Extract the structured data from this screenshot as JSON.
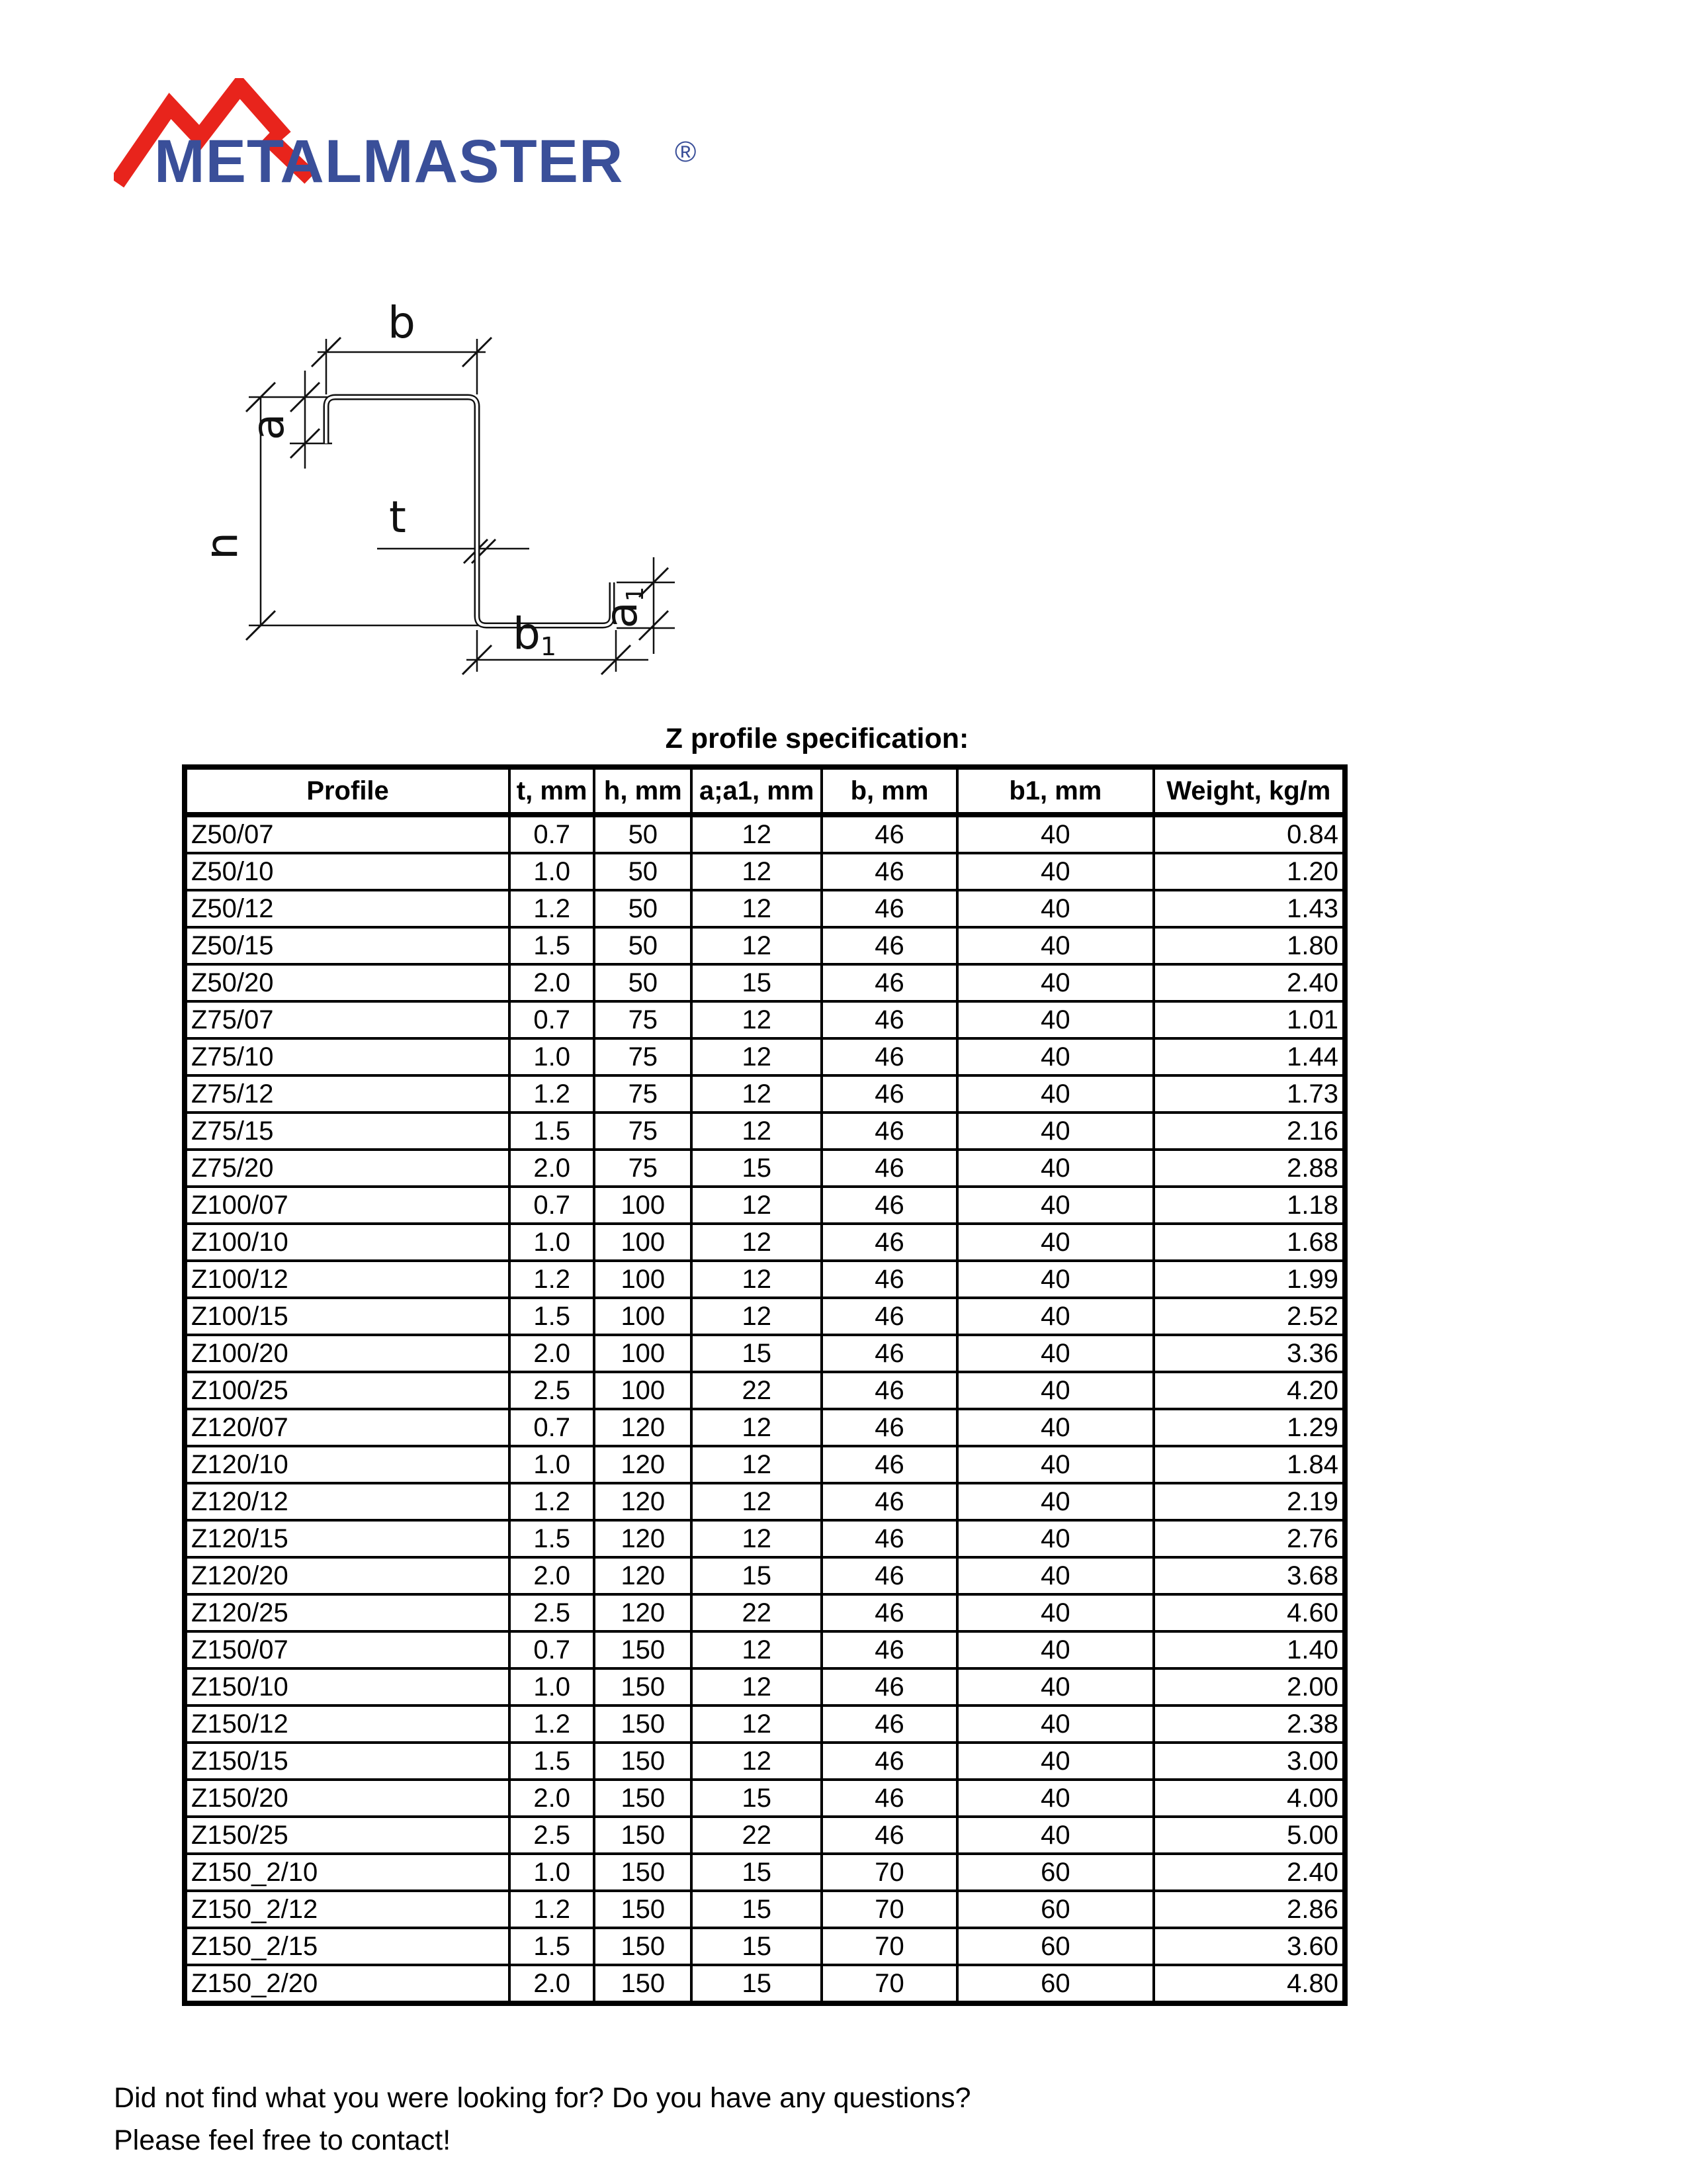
{
  "logo": {
    "brand": "METALMASTER",
    "registered_mark": "®",
    "colors": {
      "mountain_red": "#E8241C",
      "text_blue": "#3A4F99"
    }
  },
  "diagram": {
    "labels": {
      "b": "b",
      "a": "a",
      "t": "t",
      "h": "h",
      "a1_base": "a",
      "a1_sub": "1",
      "b1_base": "b",
      "b1_sub": "1"
    }
  },
  "table": {
    "title": "Z profile specification:",
    "columns": [
      "Profile",
      "t, mm",
      "h, mm",
      "a;a1, mm",
      "b, mm",
      "b1, mm",
      "Weight, kg/m"
    ],
    "rows": [
      [
        "Z50/07",
        "0.7",
        "50",
        "12",
        "46",
        "40",
        "0.84"
      ],
      [
        "Z50/10",
        "1.0",
        "50",
        "12",
        "46",
        "40",
        "1.20"
      ],
      [
        "Z50/12",
        "1.2",
        "50",
        "12",
        "46",
        "40",
        "1.43"
      ],
      [
        "Z50/15",
        "1.5",
        "50",
        "12",
        "46",
        "40",
        "1.80"
      ],
      [
        "Z50/20",
        "2.0",
        "50",
        "15",
        "46",
        "40",
        "2.40"
      ],
      [
        "Z75/07",
        "0.7",
        "75",
        "12",
        "46",
        "40",
        "1.01"
      ],
      [
        "Z75/10",
        "1.0",
        "75",
        "12",
        "46",
        "40",
        "1.44"
      ],
      [
        "Z75/12",
        "1.2",
        "75",
        "12",
        "46",
        "40",
        "1.73"
      ],
      [
        "Z75/15",
        "1.5",
        "75",
        "12",
        "46",
        "40",
        "2.16"
      ],
      [
        "Z75/20",
        "2.0",
        "75",
        "15",
        "46",
        "40",
        "2.88"
      ],
      [
        "Z100/07",
        "0.7",
        "100",
        "12",
        "46",
        "40",
        "1.18"
      ],
      [
        "Z100/10",
        "1.0",
        "100",
        "12",
        "46",
        "40",
        "1.68"
      ],
      [
        "Z100/12",
        "1.2",
        "100",
        "12",
        "46",
        "40",
        "1.99"
      ],
      [
        "Z100/15",
        "1.5",
        "100",
        "12",
        "46",
        "40",
        "2.52"
      ],
      [
        "Z100/20",
        "2.0",
        "100",
        "15",
        "46",
        "40",
        "3.36"
      ],
      [
        "Z100/25",
        "2.5",
        "100",
        "22",
        "46",
        "40",
        "4.20"
      ],
      [
        "Z120/07",
        "0.7",
        "120",
        "12",
        "46",
        "40",
        "1.29"
      ],
      [
        "Z120/10",
        "1.0",
        "120",
        "12",
        "46",
        "40",
        "1.84"
      ],
      [
        "Z120/12",
        "1.2",
        "120",
        "12",
        "46",
        "40",
        "2.19"
      ],
      [
        "Z120/15",
        "1.5",
        "120",
        "12",
        "46",
        "40",
        "2.76"
      ],
      [
        "Z120/20",
        "2.0",
        "120",
        "15",
        "46",
        "40",
        "3.68"
      ],
      [
        "Z120/25",
        "2.5",
        "120",
        "22",
        "46",
        "40",
        "4.60"
      ],
      [
        "Z150/07",
        "0.7",
        "150",
        "12",
        "46",
        "40",
        "1.40"
      ],
      [
        "Z150/10",
        "1.0",
        "150",
        "12",
        "46",
        "40",
        "2.00"
      ],
      [
        "Z150/12",
        "1.2",
        "150",
        "12",
        "46",
        "40",
        "2.38"
      ],
      [
        "Z150/15",
        "1.5",
        "150",
        "12",
        "46",
        "40",
        "3.00"
      ],
      [
        "Z150/20",
        "2.0",
        "150",
        "15",
        "46",
        "40",
        "4.00"
      ],
      [
        "Z150/25",
        "2.5",
        "150",
        "22",
        "46",
        "40",
        "5.00"
      ],
      [
        "Z150_2/10",
        "1.0",
        "150",
        "15",
        "70",
        "60",
        "2.40"
      ],
      [
        "Z150_2/12",
        "1.2",
        "150",
        "15",
        "70",
        "60",
        "2.86"
      ],
      [
        "Z150_2/15",
        "1.5",
        "150",
        "15",
        "70",
        "60",
        "3.60"
      ],
      [
        "Z150_2/20",
        "2.0",
        "150",
        "15",
        "70",
        "60",
        "4.80"
      ]
    ]
  },
  "footer": {
    "line1": "Did not find what you were looking for? Do you have any questions?",
    "line2": "Please feel free to contact!"
  }
}
